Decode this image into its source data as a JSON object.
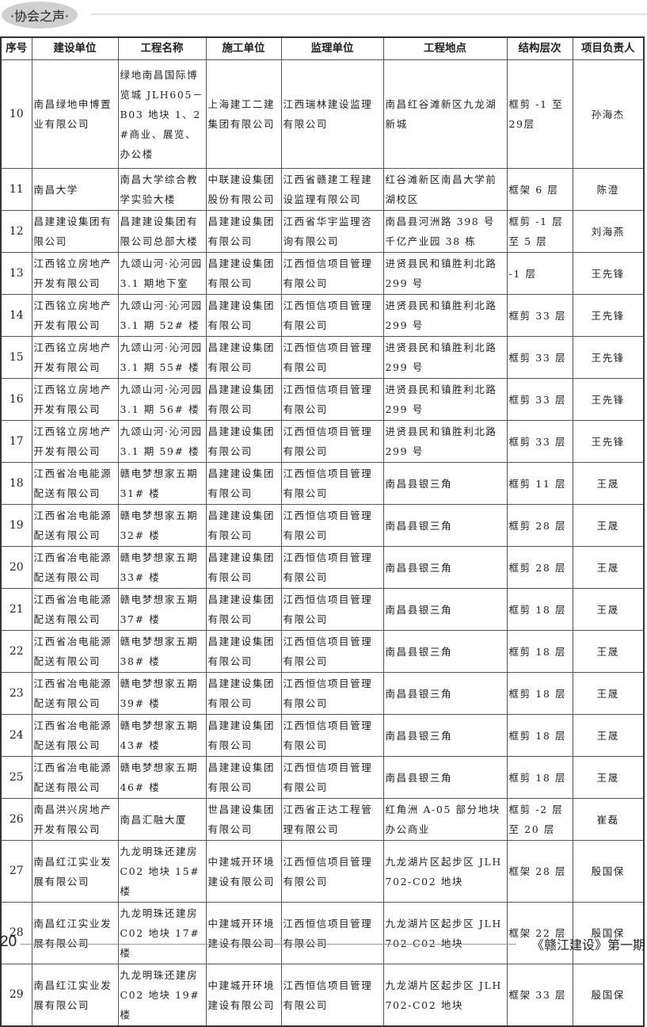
{
  "section_label": "·协会之声·",
  "table": {
    "headers": [
      "序号",
      "建设单位",
      "工程名称",
      "施工单位",
      "监理单位",
      "工程地点",
      "结构层次",
      "项目负责人"
    ],
    "rows": [
      [
        "10",
        "南昌绿地申博置业有限公司",
        "绿地南昌国际博览城 JLH605－B03 地块 1、2#商业、展览、办公楼",
        "上海建工二建集团有限公司",
        "江西瑞林建设监理有限公司",
        "南昌红谷滩新区九龙湖新城",
        "框剪 -1 至 29层",
        "孙海杰"
      ],
      [
        "11",
        "南昌大学",
        "南昌大学综合教学实验大楼",
        "中联建设集团股份有限公司",
        "江西省赣建工程建设监理有限公司",
        "红谷滩新区南昌大学前湖校区",
        "框架 6 层",
        "陈澄"
      ],
      [
        "12",
        "昌建建设集团有限公司",
        "昌建建设集团有限公司总部大楼",
        "昌建建设集团有限公司",
        "江西省华宇监理咨询有限公司",
        "南昌县河洲路 398 号千亿产业园 38 栋",
        "框剪 -1 层至 5 层",
        "刘海燕"
      ],
      [
        "13",
        "江西铭立房地产开发有限公司",
        "九颂山河·沁河园 3.1 期地下室",
        "昌建建设集团有限公司",
        "江西恒信项目管理有限公司",
        "进贤县民和镇胜利北路 299 号",
        "-1 层",
        "王先锋"
      ],
      [
        "14",
        "江西铭立房地产开发有限公司",
        "九颂山河·沁河园 3.1 期 52# 楼",
        "昌建建设集团有限公司",
        "江西恒信项目管理有限公司",
        "进贤县民和镇胜利北路 299 号",
        "框剪 33 层",
        "王先锋"
      ],
      [
        "15",
        "江西铭立房地产开发有限公司",
        "九颂山河·沁河园 3.1 期 55# 楼",
        "昌建建设集团有限公司",
        "江西恒信项目管理有限公司",
        "进贤县民和镇胜利北路 299 号",
        "框剪 33 层",
        "王先锋"
      ],
      [
        "16",
        "江西铭立房地产开发有限公司",
        "九颂山河·沁河园 3.1 期 56# 楼",
        "昌建建设集团有限公司",
        "江西恒信项目管理有限公司",
        "进贤县民和镇胜利北路 299 号",
        "框剪 33 层",
        "王先锋"
      ],
      [
        "17",
        "江西铭立房地产开发有限公司",
        "九颂山河·沁河园 3.1 期 59# 楼",
        "昌建建设集团有限公司",
        "江西恒信项目管理有限公司",
        "进贤县民和镇胜利北路 299 号",
        "框剪 33 层",
        "王先锋"
      ],
      [
        "18",
        "江西省冶电能源配送有限公司",
        "赣电梦想家五期 31# 楼",
        "昌建建设集团有限公司",
        "江西恒信项目管理有限公司",
        "南昌县银三角",
        "框剪 11 层",
        "王晟"
      ],
      [
        "19",
        "江西省冶电能源配送有限公司",
        "赣电梦想家五期 32# 楼",
        "昌建建设集团有限公司",
        "江西恒信项目管理有限公司",
        "南昌县银三角",
        "框剪 28 层",
        "王晟"
      ],
      [
        "20",
        "江西省冶电能源配送有限公司",
        "赣电梦想家五期 33# 楼",
        "昌建建设集团有限公司",
        "江西恒信项目管理有限公司",
        "南昌县银三角",
        "框剪 28 层",
        "王晟"
      ],
      [
        "21",
        "江西省冶电能源配送有限公司",
        "赣电梦想家五期 37# 楼",
        "昌建建设集团有限公司",
        "江西恒信项目管理有限公司",
        "南昌县银三角",
        "框剪 18 层",
        "王晟"
      ],
      [
        "22",
        "江西省冶电能源配送有限公司",
        "赣电梦想家五期 38# 楼",
        "昌建建设集团有限公司",
        "江西恒信项目管理有限公司",
        "南昌县银三角",
        "框剪 18 层",
        "王晟"
      ],
      [
        "23",
        "江西省冶电能源配送有限公司",
        "赣电梦想家五期 39# 楼",
        "昌建建设集团有限公司",
        "江西恒信项目管理有限公司",
        "南昌县银三角",
        "框剪 18 层",
        "王晟"
      ],
      [
        "24",
        "江西省冶电能源配送有限公司",
        "赣电梦想家五期 43# 楼",
        "昌建建设集团有限公司",
        "江西恒信项目管理有限公司",
        "南昌县银三角",
        "框剪 18 层",
        "王晟"
      ],
      [
        "25",
        "江西省冶电能源配送有限公司",
        "赣电梦想家五期 46# 楼",
        "昌建建设集团有限公司",
        "江西恒信项目管理有限公司",
        "南昌县银三角",
        "框剪 18 层",
        "王晟"
      ],
      [
        "26",
        "南昌洪兴房地产开发有限公司",
        "南昌汇融大厦",
        "世昌建设集团有限公司",
        "江西省正达工程管理有限公司",
        "红角洲 A-05 部分地块办公商业",
        "框剪 -2 层至 20 层",
        "崔磊"
      ],
      [
        "27",
        "南昌红江实业发展有限公司",
        "九龙明珠还建房 C02 地块 15# 楼",
        "中建城开环境建设有限公司",
        "江西恒信项目管理有限公司",
        "九龙湖片区起步区 JLH702-C02 地块",
        "框架 28 层",
        "殷国保"
      ],
      [
        "28",
        "南昌红江实业发展有限公司",
        "九龙明珠还建房 C02 地块 17# 楼",
        "中建城开环境建设有限公司",
        "江西恒信项目管理有限公司",
        "九龙湖片区起步区 JLH702-C02 地块",
        "框架 22 层",
        "殷国保"
      ],
      [
        "29",
        "南昌红江实业发展有限公司",
        "九龙明珠还建房 C02 地块 19# 楼",
        "中建城开环境建设有限公司",
        "江西恒信项目管理有限公司",
        "九龙湖片区起步区 JLH702-C02 地块",
        "框架 33 层",
        "殷国保"
      ]
    ]
  },
  "footer": {
    "page_number": "20",
    "publication": "《赣江建设》第一期"
  }
}
